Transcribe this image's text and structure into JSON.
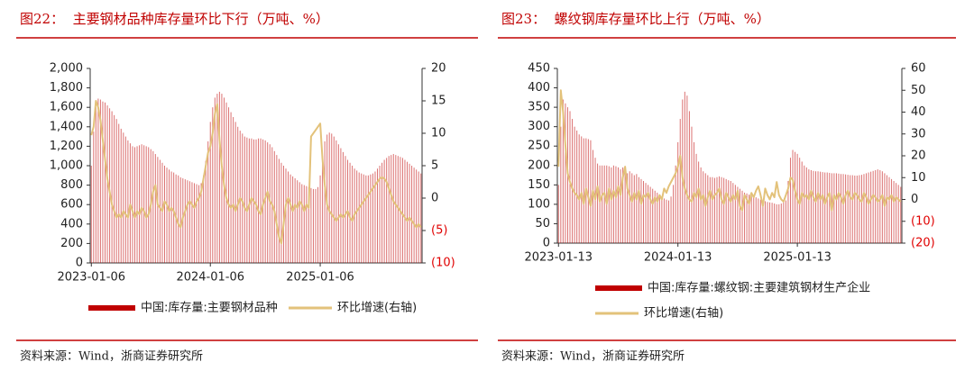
{
  "chart_data": [
    {
      "type": "combo",
      "title": "图22：  主要钢材品种库存量环比下行（万吨、%）",
      "source": "资料来源：Wind，浙商证券研究所",
      "categories": [
        "2023-01-06",
        null,
        null,
        null,
        null,
        null,
        null,
        null,
        null,
        null,
        null,
        null,
        null,
        null,
        null,
        null,
        null,
        null,
        null,
        null,
        null,
        null,
        null,
        null,
        null,
        null,
        null,
        null,
        null,
        null,
        null,
        null,
        null,
        null,
        null,
        null,
        null,
        null,
        null,
        null,
        null,
        null,
        null,
        null,
        null,
        null,
        null,
        null,
        null,
        null,
        null,
        null,
        "2024-01-06",
        null,
        null,
        null,
        null,
        null,
        null,
        null,
        null,
        null,
        null,
        null,
        null,
        null,
        null,
        null,
        null,
        null,
        null,
        null,
        null,
        null,
        null,
        null,
        null,
        null,
        null,
        null,
        null,
        null,
        null,
        null,
        null,
        null,
        null,
        null,
        null,
        null,
        null,
        null,
        null,
        null,
        null,
        null,
        null,
        null,
        null,
        null,
        "2025-01-06",
        null,
        null,
        null,
        null,
        null,
        null,
        null,
        null,
        null,
        null,
        null,
        null,
        null,
        null,
        null,
        null,
        null,
        null,
        null,
        null,
        null,
        null,
        null,
        null,
        null,
        null,
        null,
        null,
        null,
        null,
        null,
        null,
        null,
        null,
        null,
        null,
        null,
        null,
        null,
        null,
        null,
        null,
        null,
        null
      ],
      "series": [
        {
          "name": "中国:库存量:主要钢材品种",
          "type": "bar",
          "color": "#c00000",
          "values": [
            1000,
            1350,
            1600,
            1690,
            1680,
            1660,
            1650,
            1620,
            1590,
            1560,
            1520,
            1480,
            1430,
            1380,
            1340,
            1300,
            1260,
            1230,
            1200,
            1190,
            1200,
            1210,
            1220,
            1210,
            1200,
            1190,
            1170,
            1150,
            1120,
            1090,
            1060,
            1030,
            1000,
            980,
            960,
            940,
            930,
            910,
            900,
            880,
            870,
            860,
            850,
            840,
            830,
            820,
            810,
            800,
            820,
            900,
            1050,
            1250,
            1450,
            1600,
            1700,
            1740,
            1760,
            1740,
            1700,
            1650,
            1600,
            1550,
            1500,
            1450,
            1400,
            1360,
            1330,
            1300,
            1290,
            1280,
            1280,
            1270,
            1270,
            1280,
            1280,
            1270,
            1260,
            1240,
            1220,
            1190,
            1150,
            1110,
            1070,
            1030,
            1000,
            970,
            940,
            910,
            890,
            870,
            850,
            830,
            810,
            800,
            790,
            780,
            770,
            760,
            760,
            780,
            900,
            1100,
            1250,
            1320,
            1340,
            1330,
            1300,
            1260,
            1220,
            1180,
            1140,
            1100,
            1060,
            1030,
            1000,
            970,
            950,
            930,
            920,
            910,
            900,
            900,
            910,
            920,
            940,
            970,
            1000,
            1030,
            1060,
            1080,
            1100,
            1110,
            1120,
            1110,
            1100,
            1090,
            1080,
            1060,
            1040,
            1020,
            1000,
            980,
            960,
            940,
            920
          ]
        },
        {
          "name": "环比增速(右轴)",
          "type": "line",
          "axis": "y2",
          "color": "#e3c27a",
          "values": [
            9.7,
            11,
            15,
            14,
            12,
            9,
            6,
            3,
            1,
            -1,
            -2,
            -3,
            -2.5,
            -3,
            -2,
            -2.5,
            -3,
            -1,
            -2,
            -3,
            -2,
            -2.5,
            -1.5,
            -2,
            -3,
            -2.5,
            -1,
            1,
            2,
            -1,
            -1.5,
            -2,
            -0.5,
            -1,
            -2,
            -1.5,
            -2,
            -3,
            -4,
            -4.5,
            -3,
            -2,
            -1,
            -0.5,
            -1,
            -1.5,
            -0.5,
            0,
            1,
            3,
            5,
            7,
            8,
            10,
            13,
            14.5,
            9,
            5,
            2,
            0,
            -1,
            -1.5,
            -1,
            -2,
            -1,
            0,
            -0.5,
            -1.5,
            -2,
            -1,
            0,
            -0.5,
            -1,
            -2,
            -2.5,
            -1,
            0,
            1,
            -0.5,
            -1,
            -2,
            -4,
            -6,
            -7,
            -4,
            -1,
            0,
            -1,
            -2,
            -1,
            -1.5,
            -0.5,
            -1,
            -2,
            -1,
            -1.5,
            9.5,
            10,
            10.5,
            11,
            11.5,
            6,
            2,
            -1,
            -2,
            -2.5,
            -3,
            -3.5,
            -3,
            -2.5,
            -3,
            -2.5,
            -2,
            -3,
            -3.5,
            -2.5,
            -2,
            -1.5,
            -1,
            -0.5,
            0,
            0.5,
            1,
            1.5,
            2,
            2.5,
            3,
            3.2,
            3,
            2.5,
            1.5,
            0.5,
            -0.5,
            -1,
            -1.5,
            -2,
            -2.5,
            -3,
            -3.5,
            -3,
            -3.5,
            -4,
            -4.5,
            -4,
            -4.5
          ]
        }
      ],
      "ylim": [
        0,
        2000
      ],
      "yticks": [
        0,
        200,
        400,
        600,
        800,
        {
          "value": 1000,
          "label": "1,000"
        },
        {
          "value": 1200,
          "label": "1,200"
        },
        {
          "value": 1400,
          "label": "1,400"
        },
        {
          "value": 1600,
          "label": "1,600"
        },
        {
          "value": 1800,
          "label": "1,800"
        },
        {
          "value": 2000,
          "label": "2,000"
        }
      ],
      "y2lim": [
        -10,
        20
      ],
      "y2ticks": [
        {
          "value": -10,
          "label": "(10)"
        },
        {
          "value": -5,
          "label": "(5)"
        },
        0,
        5,
        10,
        15,
        20
      ],
      "y2_negative_tick_color": "#e00000",
      "legend": "bottom-row"
    },
    {
      "type": "combo",
      "title": "图23：  螺纹钢库存量环比上行（万吨、%）",
      "source": "资料来源：Wind，浙商证券研究所",
      "categories": [
        "2023-01-13",
        null,
        null,
        null,
        null,
        null,
        null,
        null,
        null,
        null,
        null,
        null,
        null,
        null,
        null,
        null,
        null,
        null,
        null,
        null,
        null,
        null,
        null,
        null,
        null,
        null,
        null,
        null,
        null,
        null,
        null,
        null,
        null,
        null,
        null,
        null,
        null,
        null,
        null,
        null,
        null,
        null,
        null,
        null,
        null,
        null,
        null,
        null,
        null,
        null,
        null,
        null,
        "2024-01-13",
        null,
        null,
        null,
        null,
        null,
        null,
        null,
        null,
        null,
        null,
        null,
        null,
        null,
        null,
        null,
        null,
        null,
        null,
        null,
        null,
        null,
        null,
        null,
        null,
        null,
        null,
        null,
        null,
        null,
        null,
        null,
        null,
        null,
        null,
        null,
        null,
        null,
        null,
        null,
        null,
        null,
        null,
        null,
        null,
        null,
        null,
        null,
        null,
        null,
        null,
        null,
        "2025-01-13",
        null,
        null,
        null,
        null,
        null,
        null,
        null,
        null,
        null,
        null,
        null,
        null,
        null,
        null,
        null,
        null,
        null,
        null,
        null,
        null,
        null,
        null,
        null,
        null,
        null,
        null,
        null,
        null,
        null,
        null,
        null,
        null,
        null,
        null,
        null,
        null,
        null,
        null,
        null,
        null,
        null,
        null,
        null,
        null,
        null
      ],
      "series": [
        {
          "name": "中国:库存量:螺纹钢:主要建筑钢材生产企业",
          "type": "bar",
          "color": "#c00000",
          "values": [
            150,
            300,
            370,
            360,
            350,
            340,
            320,
            300,
            290,
            280,
            275,
            270,
            270,
            268,
            265,
            240,
            220,
            205,
            200,
            200,
            200,
            200,
            198,
            195,
            200,
            198,
            195,
            190,
            195,
            185,
            180,
            185,
            180,
            175,
            178,
            170,
            165,
            160,
            155,
            150,
            145,
            140,
            135,
            130,
            125,
            120,
            115,
            112,
            110,
            120,
            150,
            200,
            260,
            320,
            370,
            390,
            380,
            340,
            300,
            260,
            230,
            210,
            195,
            185,
            180,
            175,
            170,
            170,
            168,
            170,
            172,
            170,
            168,
            165,
            162,
            160,
            155,
            150,
            145,
            140,
            135,
            130,
            128,
            125,
            122,
            120,
            118,
            115,
            112,
            110,
            108,
            106,
            105,
            104,
            102,
            100,
            100,
            102,
            105,
            110,
            160,
            220,
            240,
            235,
            230,
            220,
            210,
            200,
            195,
            190,
            188,
            186,
            185,
            185,
            184,
            183,
            182,
            182,
            181,
            180,
            180,
            180,
            179,
            178,
            178,
            177,
            176,
            175,
            175,
            174,
            174,
            175,
            176,
            178,
            180,
            182,
            184,
            186,
            188,
            190,
            188,
            185,
            180,
            175,
            170,
            165,
            160,
            155,
            150,
            145
          ]
        },
        {
          "name": "环比增速(右轴)",
          "type": "line",
          "axis": "y2",
          "color": "#e3c27a",
          "values": [
            15,
            50,
            40,
            25,
            12,
            8,
            5,
            3,
            2,
            0,
            3,
            -2,
            5,
            1,
            -3,
            4,
            0,
            6,
            -1,
            2,
            3,
            -2,
            5,
            0,
            4,
            1,
            6,
            2,
            10,
            15,
            5,
            2,
            -1,
            3,
            0,
            4,
            -2,
            2,
            1,
            3,
            0,
            -2,
            1,
            -1,
            2,
            0,
            5,
            3,
            6,
            8,
            10,
            12,
            15,
            20,
            10,
            5,
            2,
            0,
            -1,
            3,
            1,
            5,
            0,
            2,
            -3,
            1,
            4,
            0,
            2,
            3,
            5,
            0,
            -2,
            3,
            1,
            -1,
            2,
            0,
            4,
            -3,
            -5,
            2,
            0,
            -2,
            3,
            1,
            4,
            6,
            2,
            -3,
            5,
            2,
            0,
            3,
            1,
            8,
            2,
            0,
            -1,
            2,
            5,
            10,
            9,
            4,
            0,
            -2,
            3,
            1,
            2,
            0,
            4,
            1,
            -1,
            3,
            0,
            2,
            -2,
            1,
            3,
            -5,
            2,
            0,
            3,
            1,
            -2,
            2,
            4,
            1,
            0,
            3,
            2,
            0,
            -1,
            3,
            1,
            -2,
            0,
            2,
            1,
            -1,
            0,
            2,
            -3,
            1,
            0,
            2,
            -1,
            1,
            0,
            -1
          ]
        }
      ],
      "ylim": [
        0,
        450
      ],
      "yticks": [
        0,
        50,
        100,
        150,
        200,
        250,
        300,
        350,
        400,
        450
      ],
      "y2lim": [
        -20,
        60
      ],
      "y2ticks": [
        {
          "value": -20,
          "label": "(20)"
        },
        {
          "value": -10,
          "label": "(10)"
        },
        0,
        10,
        20,
        30,
        40,
        50,
        60
      ],
      "y2_negative_tick_color": "#e00000",
      "legend": "bottom-stacked"
    }
  ]
}
